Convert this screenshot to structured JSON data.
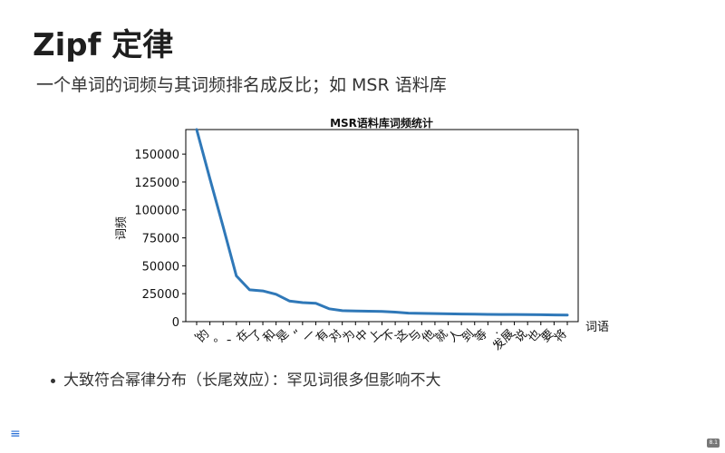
{
  "slide": {
    "title": "Zipf 定律",
    "subtitle": "一个单词的词频与其词频排名成反比；如 MSR 语料库",
    "bullet": "大致符合幂律分布（长尾效应）：罕见词很多但影响不大",
    "nav_icon": "menu-icon",
    "page_number": "8.1"
  },
  "chart_data": {
    "type": "line",
    "title": "MSR语料库词频统计",
    "xlabel": "词语",
    "ylabel": "词频",
    "categories": [
      ",",
      "的",
      "。",
      "、",
      "在",
      "了",
      "和",
      "是",
      "“",
      "一",
      "有",
      "对",
      "为",
      "中",
      "上",
      "不",
      "这",
      "与",
      "他",
      "就",
      "人",
      "到",
      "等",
      "·",
      "发展",
      "说",
      "也",
      "要",
      "将"
    ],
    "x_labels": [
      ",",
      "的",
      "。",
      "、",
      "在",
      "了",
      "和",
      "是",
      "“",
      "一",
      "有",
      "对",
      "为",
      "中",
      "上",
      "不",
      "这",
      "与",
      "他",
      "就",
      "人",
      "到",
      "等",
      "·",
      "发展",
      "说",
      "也",
      "要",
      "将"
    ],
    "values": [
      172000,
      128000,
      85000,
      41000,
      28500,
      27500,
      24500,
      18500,
      17000,
      16500,
      11500,
      9800,
      9500,
      9300,
      9200,
      8500,
      7600,
      7400,
      7200,
      7000,
      6800,
      6700,
      6500,
      6400,
      6400,
      6300,
      6200,
      6000,
      5900
    ],
    "yticks": [
      "0",
      "25000",
      "50000",
      "75000",
      "100000",
      "125000",
      "150000"
    ],
    "ylim": [
      0,
      172000
    ],
    "line_color": "#2f78b8",
    "grid": false
  }
}
